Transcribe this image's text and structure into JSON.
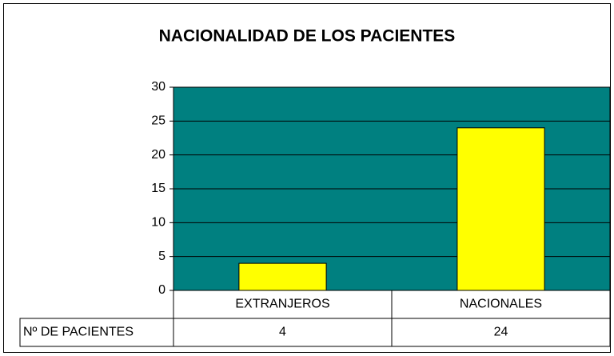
{
  "chart_data": {
    "type": "bar",
    "title": "NACIONALIDAD DE LOS PACIENTES",
    "categories": [
      "EXTRANJEROS",
      "NACIONALES"
    ],
    "series": [
      {
        "name": "Nº DE PACIENTES",
        "color": "#ffff00",
        "values": [
          4,
          24
        ]
      }
    ],
    "ylim": [
      0,
      30
    ],
    "yticks": [
      0,
      5,
      10,
      15,
      20,
      25,
      30
    ],
    "grid": true,
    "plot_background": "#008080",
    "data_table": true
  }
}
